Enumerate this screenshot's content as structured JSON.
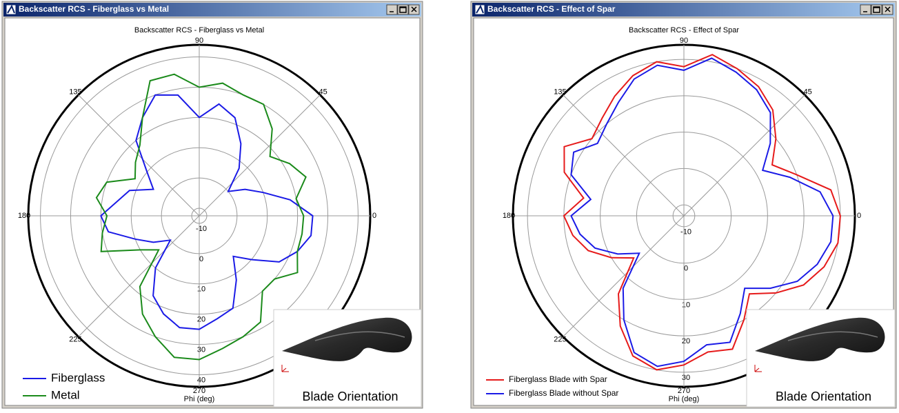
{
  "chart_data": [
    {
      "type": "polar",
      "window_title": "Backscatter RCS - Fiberglass vs Metal",
      "title": "Backscatter RCS - Fiberglass vs Metal",
      "xlabel": "Phi (deg)",
      "inset_label": "Blade Orientation",
      "theta": [
        0,
        10,
        20,
        30,
        40,
        50,
        60,
        70,
        80,
        90,
        100,
        110,
        120,
        130,
        140,
        150,
        160,
        170,
        180,
        190,
        200,
        210,
        220,
        230,
        240,
        250,
        260,
        270,
        280,
        290,
        300,
        310,
        320,
        330,
        340,
        350
      ],
      "thetaticks": [
        0,
        45,
        90,
        135,
        180,
        225,
        270
      ],
      "rlim": [
        -12.5,
        44
      ],
      "rticks": [
        -10,
        0,
        10,
        20,
        30,
        40
      ],
      "series": [
        {
          "name": "Fiberglass",
          "color": "#1a1ae6",
          "values": [
            25,
            18,
            10,
            5,
            0,
            8,
            15,
            22,
            25,
            20,
            28,
            30,
            25,
            20,
            10,
            5,
            12,
            15,
            20,
            18,
            10,
            5,
            0,
            10,
            18,
            22,
            25,
            25,
            22,
            20,
            12,
            5,
            10,
            18,
            22,
            25
          ]
        },
        {
          "name": "Metal",
          "color": "#1a8a1a",
          "values": [
            22,
            20,
            25,
            22,
            18,
            25,
            30,
            30,
            32,
            30,
            35,
            35,
            25,
            18,
            15,
            12,
            20,
            22,
            18,
            20,
            22,
            10,
            5,
            18,
            25,
            30,
            35,
            35,
            32,
            30,
            28,
            20,
            20,
            25,
            22,
            22
          ]
        }
      ]
    },
    {
      "type": "polar",
      "window_title": "Backscatter RCS - Effect of Spar",
      "title": "Backscatter RCS - Effect of Spar",
      "xlabel": "Phi (deg)",
      "inset_label": "Blade Orientation",
      "theta": [
        0,
        10,
        20,
        30,
        40,
        50,
        60,
        70,
        80,
        90,
        100,
        110,
        120,
        130,
        140,
        150,
        160,
        170,
        180,
        190,
        200,
        210,
        220,
        230,
        240,
        250,
        260,
        270,
        280,
        290,
        300,
        310,
        320,
        330,
        340,
        350
      ],
      "thetaticks": [
        0,
        45,
        90,
        135,
        180,
        225,
        270
      ],
      "rlim": [
        -13,
        34
      ],
      "rticks": [
        -10,
        0,
        10,
        20,
        30
      ],
      "series": [
        {
          "name": "Fiberglass Blade with Spar",
          "color": "#e61a1a",
          "values": [
            30,
            28,
            20,
            15,
            20,
            25,
            28,
            30,
            32,
            28,
            30,
            28,
            25,
            22,
            20,
            25,
            22,
            15,
            20,
            18,
            15,
            10,
            5,
            15,
            22,
            28,
            30,
            28,
            25,
            26,
            20,
            15,
            20,
            25,
            28,
            30
          ]
        },
        {
          "name": "Fiberglass Blade without Spar",
          "color": "#1a1ae6",
          "values": [
            28,
            25,
            18,
            12,
            18,
            24,
            27,
            29,
            31,
            27,
            29,
            27,
            23,
            20,
            18,
            22,
            20,
            13,
            18,
            16,
            13,
            8,
            3,
            13,
            20,
            27,
            29,
            27,
            23,
            24,
            18,
            13,
            18,
            23,
            26,
            28
          ]
        }
      ]
    }
  ]
}
